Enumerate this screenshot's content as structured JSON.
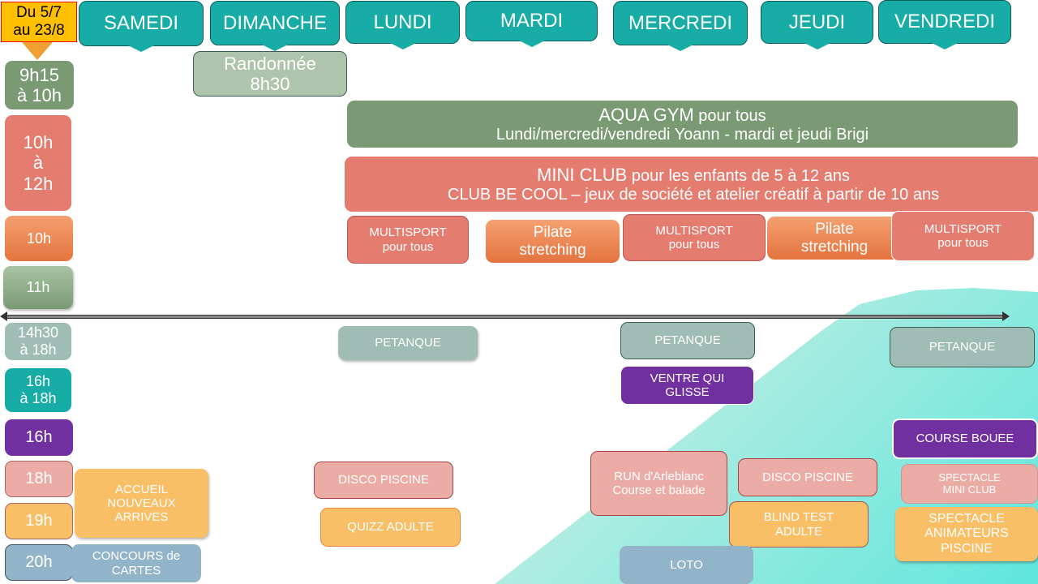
{
  "period": "Du 5/7\nau 23/8",
  "days": [
    "SAMEDI",
    "DIMANCHE",
    "LUNDI",
    "MARDI",
    "MERCREDI",
    "JEUDI",
    "VENDREDI"
  ],
  "times": [
    "9h15\nà 10h",
    "10h\nà\n12h",
    "10h",
    "11h",
    "14h30\nà 18h",
    "16h\nà 18h",
    "16h",
    "18h",
    "19h",
    "20h"
  ],
  "events": {
    "randonnee": "Randonnée\n8h30",
    "aqua_title": "AQUA GYM",
    "aqua_sub": " pour tous",
    "aqua_line2": "Lundi/mercredi/vendredi Yoann  -  mardi et jeudi Brigi",
    "mini_title": "MINI CLUB",
    "mini_sub": " pour les enfants de 5 à 12 ans",
    "mini_line2": "CLUB BE COOL – jeux de société et atelier créatif à partir de 10 ans",
    "multisport": "MULTISPORT\npour tous",
    "pilate": "Pilate\nstretching",
    "petanque": "PETANQUE",
    "ventre": "VENTRE QUI\nGLISSE",
    "course_bouee": "COURSE BOUEE",
    "accueil": "ACCUEIL\nNOUVEAUX\nARRIVES",
    "disco": "DISCO PISCINE",
    "run": "RUN d'Arleblanc\nCourse et balade",
    "spectacle_mini": "SPECTACLE\nMINI CLUB",
    "blind": "BLIND TEST\nADULTE",
    "quizz": "QUIZZ ADULTE",
    "spectacle_anim": "SPECTACLE\nANIMATEURS\nPISCINE",
    "concours": "CONCOURS de\nCARTES",
    "loto": "LOTO"
  },
  "colors": {
    "teal": "#17ada6",
    "green": "#7a9a74",
    "salmon": "#e47c70",
    "orange": "#f0904f",
    "purple": "#7030a0",
    "pink": "#ecaca6",
    "yellow": "#f9bf66",
    "blue": "#92b4c8",
    "grey": "#9fbcb5"
  }
}
